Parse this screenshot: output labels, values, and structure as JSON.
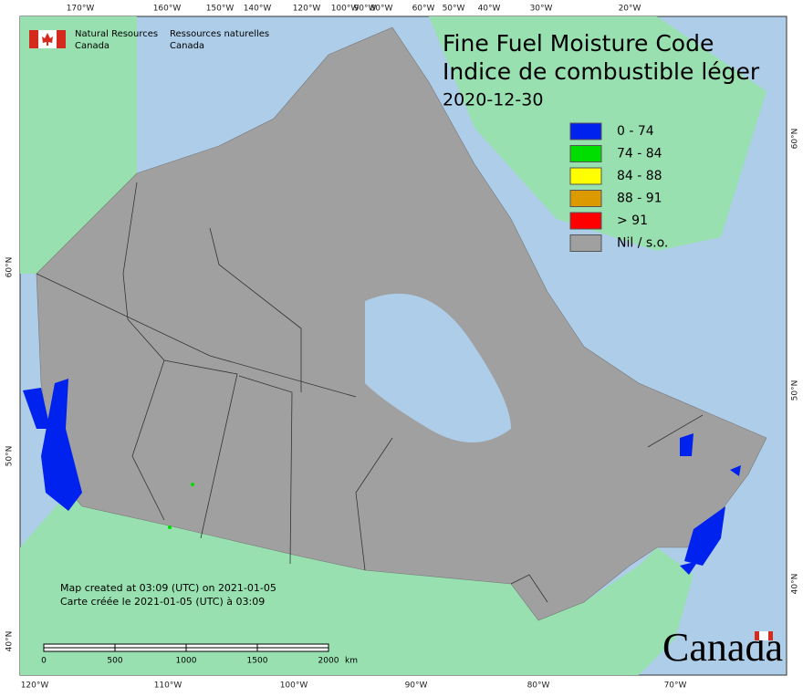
{
  "header": {
    "agency_en": [
      "Natural Resources",
      "Canada"
    ],
    "agency_fr": [
      "Ressources naturelles",
      "Canada"
    ]
  },
  "title": {
    "en": "Fine Fuel Moisture Code",
    "fr": "Indice de combustible léger",
    "date": "2020-12-30"
  },
  "legend": [
    {
      "label": "0 - 74",
      "color": "#0022ee"
    },
    {
      "label": "74 - 84",
      "color": "#00dd00"
    },
    {
      "label": "84 - 88",
      "color": "#ffff00"
    },
    {
      "label": "88 - 91",
      "color": "#dd9900"
    },
    {
      "label": "> 91",
      "color": "#ff0000"
    },
    {
      "label": "Nil / s.o.",
      "color": "#a0a0a0"
    }
  ],
  "graticule": {
    "top": [
      "170°W",
      "160°W",
      "150°W",
      "140°W",
      "120°W",
      "100°W",
      "90°W",
      "80°W",
      "60°W",
      "50°W",
      "40°W",
      "30°W",
      "20°W"
    ],
    "bottom": [
      "120°W",
      "110°W",
      "100°W",
      "90°W",
      "80°W",
      "70°W"
    ],
    "left": [
      "60°N",
      "50°N",
      "40°N"
    ],
    "right": [
      "60°N",
      "50°N",
      "40°N"
    ]
  },
  "scale": {
    "labels": [
      "0",
      "500",
      "1000",
      "1500",
      "2000"
    ],
    "unit": "km"
  },
  "notes": [
    "Map created at 03:09 (UTC) on 2021-01-05",
    "Carte créée le 2021-01-05 (UTC) à 03:09"
  ],
  "wordmark": "Canada"
}
